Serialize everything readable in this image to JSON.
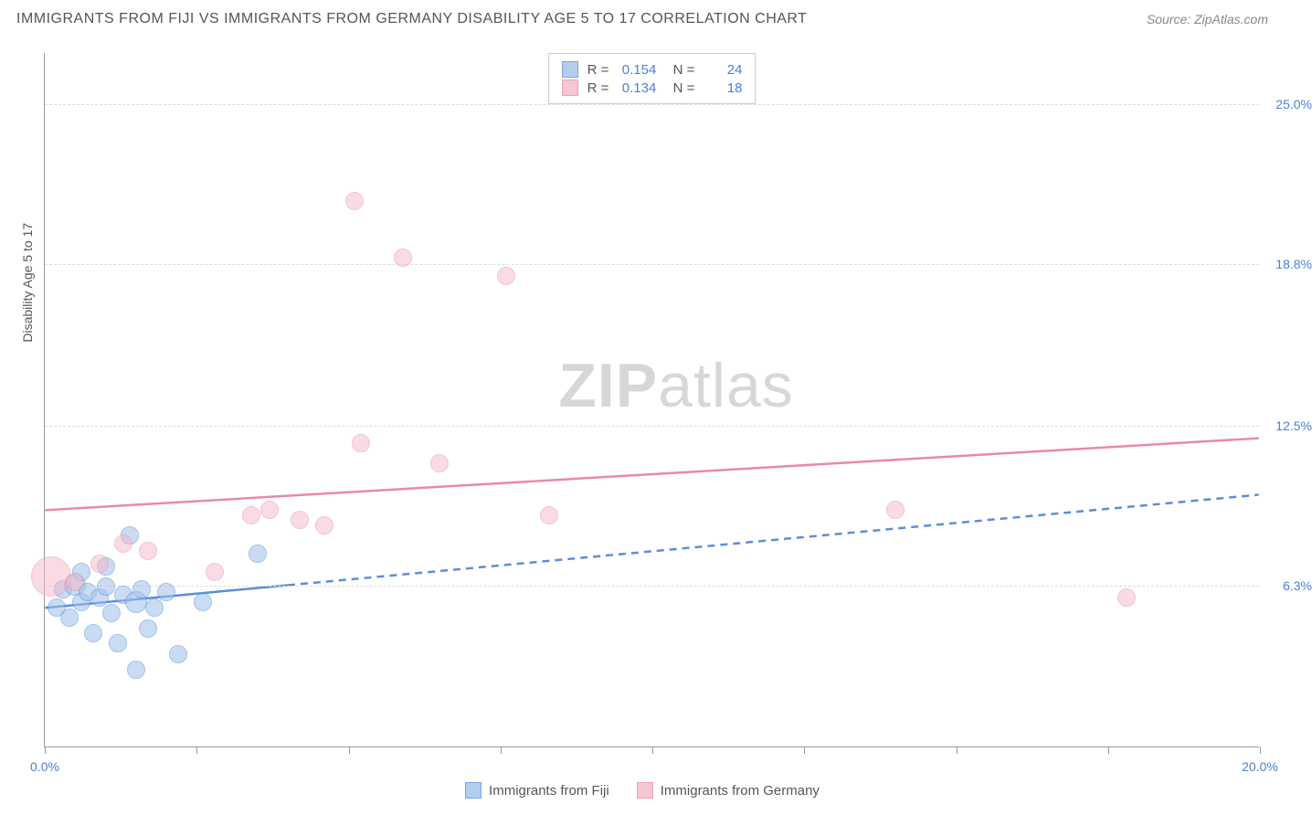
{
  "chart": {
    "title": "IMMIGRANTS FROM FIJI VS IMMIGRANTS FROM GERMANY DISABILITY AGE 5 TO 17 CORRELATION CHART",
    "source_label": "Source: ZipAtlas.com",
    "y_axis_title": "Disability Age 5 to 17",
    "watermark_bold": "ZIP",
    "watermark_light": "atlas",
    "type": "scatter",
    "background_color": "#ffffff",
    "grid_color": "#dddddd",
    "axis_color": "#999999",
    "xlim": [
      0,
      20
    ],
    "ylim": [
      0,
      27
    ],
    "y_ticks": [
      {
        "value": 6.3,
        "label": "6.3%",
        "label_color": "#4a7fd6"
      },
      {
        "value": 12.5,
        "label": "12.5%",
        "label_color": "#4a7fd6"
      },
      {
        "value": 18.8,
        "label": "18.8%",
        "label_color": "#4a7fd6"
      },
      {
        "value": 25.0,
        "label": "25.0%",
        "label_color": "#4a7fd6"
      }
    ],
    "x_ticks": [
      0,
      2.5,
      5,
      7.5,
      10,
      12.5,
      15,
      17.5,
      20
    ],
    "x_labels": [
      {
        "value": 0,
        "text": "0.0%",
        "color": "#4a7fd6"
      },
      {
        "value": 20,
        "text": "20.0%",
        "color": "#4a7fd6"
      }
    ],
    "series": [
      {
        "name": "Immigrants from Fiji",
        "fill_color": "#9fc1eb",
        "stroke_color": "#5b8fd6",
        "fill_opacity": 0.55,
        "marker_radius": 10,
        "legend_r": "0.154",
        "legend_n": "24",
        "trend": {
          "solid_to_x": 4.0,
          "y_at_x0": 5.4,
          "y_at_xmax": 9.8,
          "stroke_width": 2.5
        },
        "points": [
          {
            "x": 0.2,
            "y": 5.4,
            "r": 10
          },
          {
            "x": 0.3,
            "y": 6.1,
            "r": 10
          },
          {
            "x": 0.4,
            "y": 5.0,
            "r": 10
          },
          {
            "x": 0.5,
            "y": 6.3,
            "r": 12
          },
          {
            "x": 0.6,
            "y": 5.6,
            "r": 10
          },
          {
            "x": 0.7,
            "y": 6.0,
            "r": 10
          },
          {
            "x": 0.8,
            "y": 4.4,
            "r": 10
          },
          {
            "x": 0.9,
            "y": 5.8,
            "r": 10
          },
          {
            "x": 1.0,
            "y": 6.2,
            "r": 10
          },
          {
            "x": 1.1,
            "y": 5.2,
            "r": 10
          },
          {
            "x": 1.2,
            "y": 4.0,
            "r": 10
          },
          {
            "x": 1.3,
            "y": 5.9,
            "r": 10
          },
          {
            "x": 1.4,
            "y": 8.2,
            "r": 10
          },
          {
            "x": 1.5,
            "y": 5.6,
            "r": 12
          },
          {
            "x": 1.6,
            "y": 6.1,
            "r": 10
          },
          {
            "x": 1.7,
            "y": 4.6,
            "r": 10
          },
          {
            "x": 1.8,
            "y": 5.4,
            "r": 10
          },
          {
            "x": 2.0,
            "y": 6.0,
            "r": 10
          },
          {
            "x": 2.2,
            "y": 3.6,
            "r": 10
          },
          {
            "x": 1.5,
            "y": 3.0,
            "r": 10
          },
          {
            "x": 2.6,
            "y": 5.6,
            "r": 10
          },
          {
            "x": 3.5,
            "y": 7.5,
            "r": 10
          },
          {
            "x": 0.6,
            "y": 6.8,
            "r": 10
          },
          {
            "x": 1.0,
            "y": 7.0,
            "r": 10
          }
        ]
      },
      {
        "name": "Immigrants from Germany",
        "fill_color": "#f5b8c8",
        "stroke_color": "#e98aa5",
        "fill_opacity": 0.5,
        "marker_radius": 10,
        "legend_r": "0.134",
        "legend_n": "18",
        "trend": {
          "solid_to_x": 20.0,
          "y_at_x0": 9.2,
          "y_at_xmax": 12.0,
          "stroke_width": 2.5
        },
        "points": [
          {
            "x": 0.1,
            "y": 6.6,
            "r": 22
          },
          {
            "x": 0.5,
            "y": 6.4,
            "r": 10
          },
          {
            "x": 0.9,
            "y": 7.1,
            "r": 10
          },
          {
            "x": 1.3,
            "y": 7.9,
            "r": 10
          },
          {
            "x": 1.7,
            "y": 7.6,
            "r": 10
          },
          {
            "x": 2.8,
            "y": 6.8,
            "r": 10
          },
          {
            "x": 3.4,
            "y": 9.0,
            "r": 10
          },
          {
            "x": 3.7,
            "y": 9.2,
            "r": 10
          },
          {
            "x": 4.2,
            "y": 8.8,
            "r": 10
          },
          {
            "x": 4.6,
            "y": 8.6,
            "r": 10
          },
          {
            "x": 5.2,
            "y": 11.8,
            "r": 10
          },
          {
            "x": 5.1,
            "y": 21.2,
            "r": 10
          },
          {
            "x": 5.9,
            "y": 19.0,
            "r": 10
          },
          {
            "x": 6.5,
            "y": 11.0,
            "r": 10
          },
          {
            "x": 7.6,
            "y": 18.3,
            "r": 10
          },
          {
            "x": 8.3,
            "y": 9.0,
            "r": 10
          },
          {
            "x": 14.0,
            "y": 9.2,
            "r": 10
          },
          {
            "x": 17.8,
            "y": 5.8,
            "r": 10
          }
        ]
      }
    ]
  }
}
